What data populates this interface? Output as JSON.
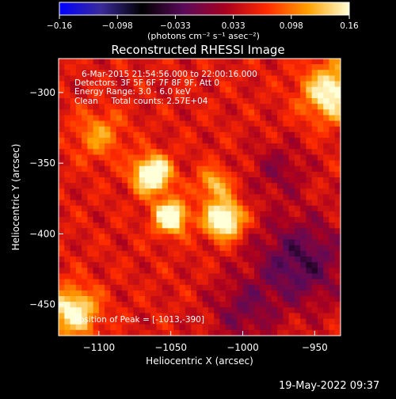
{
  "colorbar": {
    "tick_labels": [
      "-0.16",
      "-0.098",
      "-0.033",
      "0.033",
      "0.098",
      "0.16"
    ],
    "min": -0.16,
    "max": 0.16,
    "unit_label": "(photons cm⁻² s⁻¹ asec⁻²)",
    "colors": [
      "#0000ff",
      "#3a2a9a",
      "#000000",
      "#5a0a5a",
      "#a80020",
      "#ff2a00",
      "#ffa000",
      "#ffffd8"
    ]
  },
  "chart_data": {
    "type": "heatmap",
    "title": "Reconstructed RHESSI Image",
    "xlabel": "Heliocentric X (arcsec)",
    "ylabel": "Heliocentric Y (arcsec)",
    "xlim": [
      -1128,
      -932
    ],
    "ylim": [
      -472,
      -276
    ],
    "x_ticks": [
      -1100,
      -1050,
      -1000,
      -950
    ],
    "y_ticks": [
      -300,
      -350,
      -400,
      -450
    ],
    "x_tick_labels": [
      "−1100",
      "−1050",
      "−1000",
      "−950"
    ],
    "y_tick_labels": [
      "−300",
      "−350",
      "−400",
      "−450"
    ],
    "sources": [
      {
        "x": -1063,
        "y": -358,
        "amp": 0.16,
        "sigma": 9
      },
      {
        "x": -1050,
        "y": -388,
        "amp": 0.15,
        "sigma": 8
      },
      {
        "x": -1013,
        "y": -390,
        "amp": 0.16,
        "sigma": 9
      },
      {
        "x": -1020,
        "y": -365,
        "amp": 0.08,
        "sigma": 8
      },
      {
        "x": -938,
        "y": -300,
        "amp": 0.12,
        "sigma": 14
      },
      {
        "x": -1118,
        "y": -455,
        "amp": 0.12,
        "sigma": 12
      },
      {
        "x": -1100,
        "y": -330,
        "amp": 0.06,
        "sigma": 12
      }
    ],
    "negative_regions": [
      {
        "x": -960,
        "y": -420,
        "amp": -0.08,
        "sigma": 22
      },
      {
        "x": -1000,
        "y": -455,
        "amp": -0.05,
        "sigma": 16
      },
      {
        "x": -975,
        "y": -355,
        "amp": -0.04,
        "sigma": 14
      }
    ],
    "annotations": [
      "6-Mar-2015 21:54:56.000 to 22:00:16.000",
      "Detectors: 3F 5F 6F 7F 8F 9F, Att 0",
      "Energy Range: 3.0 - 6.0 keV",
      "Clean     Total counts: 2.57E+04",
      "Position of Peak = [-1013,-390]"
    ]
  },
  "timestamp": "19-May-2022 09:37"
}
